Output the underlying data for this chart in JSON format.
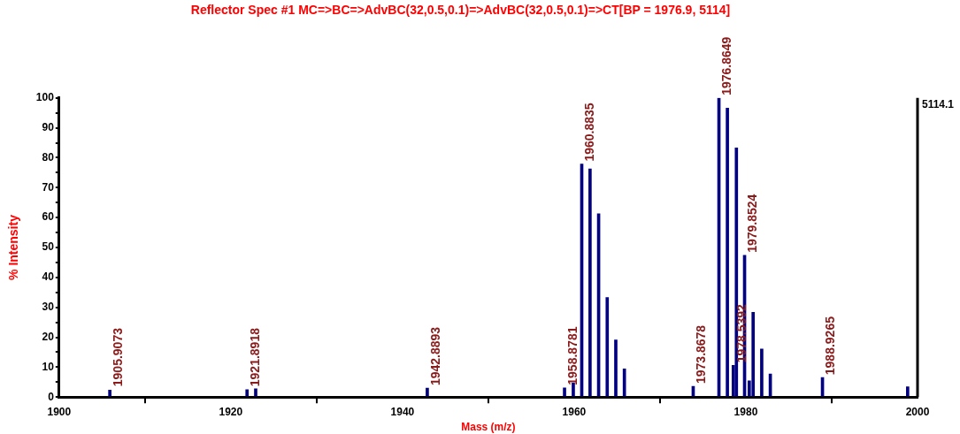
{
  "chart_data": {
    "type": "bar",
    "title": "Reflector Spec #1 MC=>BC=>AdvBC(32,0.5,0.1)=>AdvBC(32,0.5,0.1)=>CT[BP = 1976.9, 5114]",
    "xlabel": "Mass (m/z)",
    "ylabel": "% Intensity",
    "x": [
      1905.9073,
      1921.8918,
      1922.9,
      1942.8893,
      1958.8781,
      1959.9,
      1960.8835,
      1961.85,
      1962.85,
      1963.85,
      1964.85,
      1965.85,
      1973.8678,
      1976.8649,
      1977.85,
      1978.5392,
      1978.9,
      1979.8524,
      1980.4,
      1980.85,
      1981.85,
      1982.85,
      1988.9265,
      1998.85
    ],
    "values": [
      2.3,
      2.5,
      2.8,
      3,
      3.1,
      4.7,
      77.9,
      76.3,
      61.3,
      33.3,
      19.1,
      9.4,
      3.6,
      100,
      96.6,
      10.6,
      83.3,
      47.4,
      5.4,
      28.3,
      16.1,
      7.7,
      6.5,
      3.4
    ],
    "color": "#000080",
    "xlim": [
      1900,
      2000
    ],
    "xticks": [
      1900,
      1920,
      1940,
      1960,
      1980,
      2000
    ],
    "ylim": [
      0,
      100
    ],
    "yticks": [
      0,
      {
        "value": 5,
        "label": null
      },
      10,
      {
        "value": 15,
        "label": null
      },
      20,
      {
        "value": 25,
        "label": null
      },
      30,
      {
        "value": 35,
        "label": null
      },
      40,
      {
        "value": 45,
        "label": null
      },
      50,
      {
        "value": 55,
        "label": null
      },
      60,
      {
        "value": 65,
        "label": null
      },
      70,
      {
        "value": 75,
        "label": null
      },
      80,
      {
        "value": 85,
        "label": null
      },
      90,
      {
        "value": 95,
        "label": null
      },
      100
    ],
    "grid": false,
    "legend": false,
    "annotations": [
      "5114.1",
      {
        "text": "1905.9073",
        "x": 1905.9073,
        "y": 2.3
      },
      {
        "text": "1921.8918",
        "x": 1921.8918,
        "y": 2.5
      },
      {
        "text": "1942.8893",
        "x": 1942.8893,
        "y": 3
      },
      {
        "text": "1958.8781",
        "x": 1958.8781,
        "y": 3.1
      },
      {
        "text": "1960.8835",
        "x": 1960.8835,
        "y": 77.9
      },
      {
        "text": "1973.8678",
        "x": 1973.8678,
        "y": 3.6
      },
      {
        "text": "1976.8649",
        "x": 1976.8649,
        "y": 100
      },
      {
        "text": "1978.5392",
        "x": 1978.5392,
        "y": 10.6
      },
      {
        "text": "1979.8524",
        "x": 1979.8524,
        "y": 47.4
      },
      {
        "text": "1988.9265",
        "x": 1988.9265,
        "y": 6.5
      }
    ]
  }
}
